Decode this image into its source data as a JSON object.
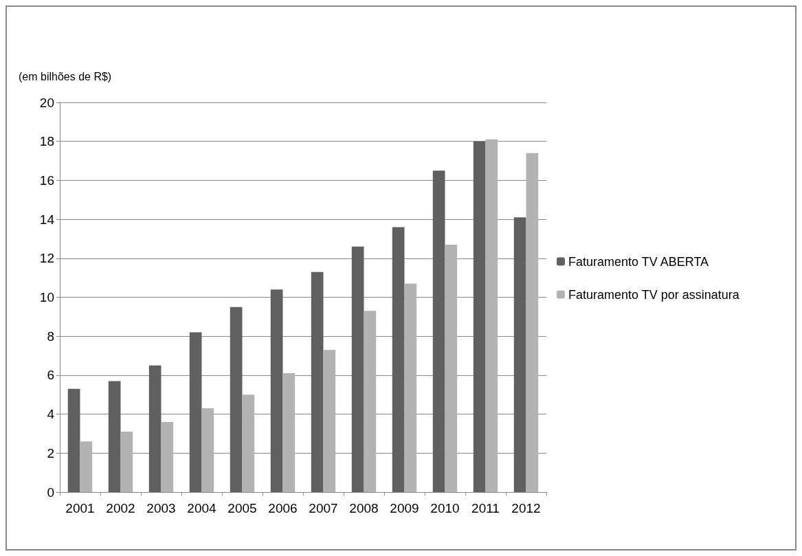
{
  "chart_data": {
    "type": "bar",
    "ylabel": "(em bilhões de R$)",
    "categories": [
      "2001",
      "2002",
      "2003",
      "2004",
      "2005",
      "2006",
      "2007",
      "2008",
      "2009",
      "2010",
      "2011",
      "2012"
    ],
    "series": [
      {
        "name": "Faturamento TV ABERTA",
        "color": "#606060",
        "values": [
          5.3,
          5.7,
          6.5,
          8.2,
          9.5,
          10.4,
          11.3,
          12.6,
          13.6,
          16.5,
          18.0,
          14.1
        ]
      },
      {
        "name": "Faturamento TV por assinatura",
        "color": "#b3b3b3",
        "values": [
          2.6,
          3.1,
          3.6,
          4.3,
          5.0,
          6.1,
          7.3,
          9.3,
          10.7,
          12.7,
          18.1,
          17.4
        ]
      }
    ],
    "ylim": [
      0,
      20
    ],
    "yticks": [
      0,
      2,
      4,
      6,
      8,
      10,
      12,
      14,
      16,
      18,
      20
    ],
    "grid": "y",
    "legend": "right"
  }
}
